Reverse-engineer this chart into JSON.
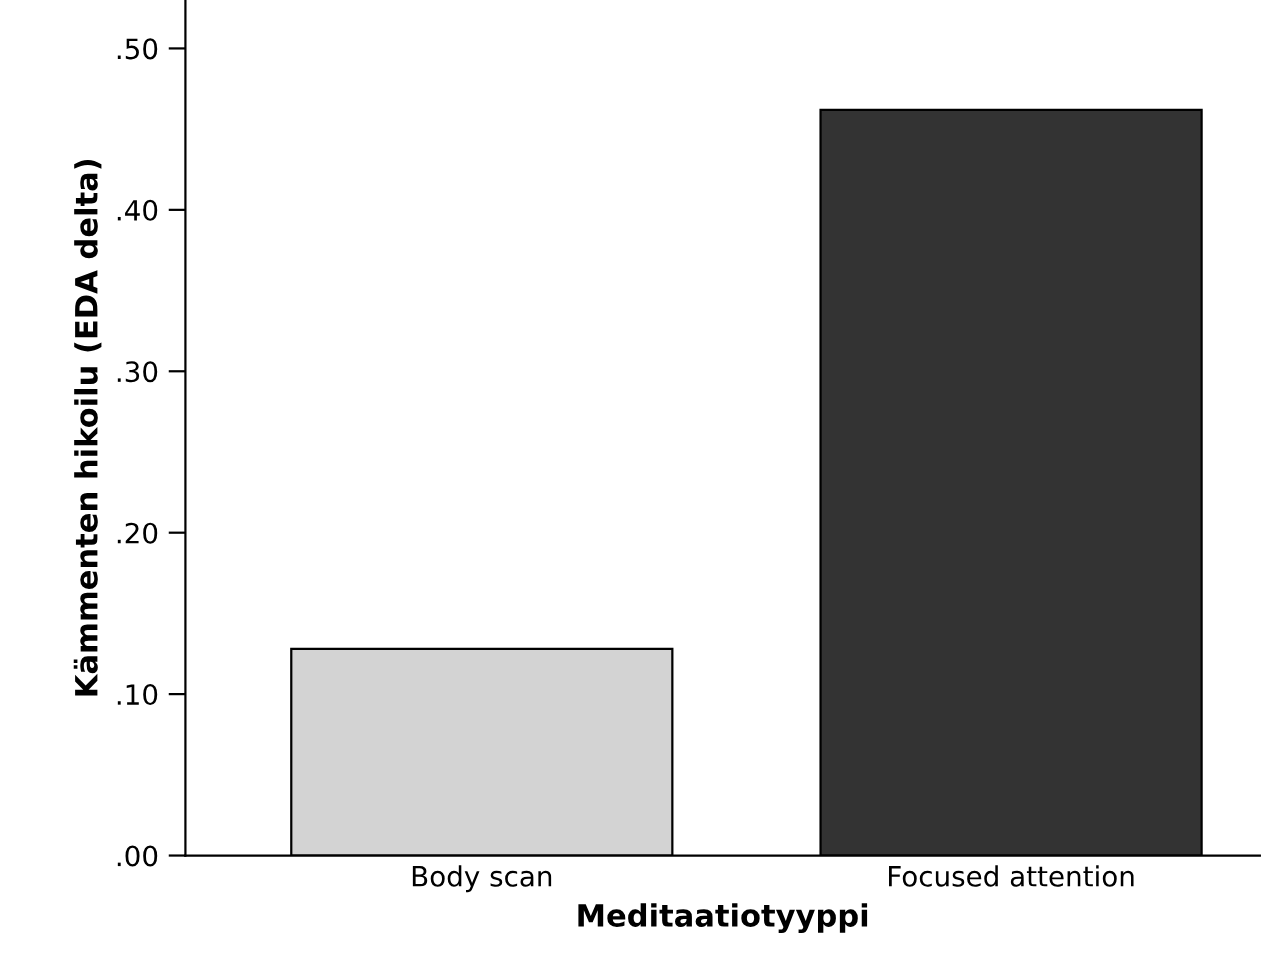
{
  "chart_data": {
    "type": "bar",
    "xlabel": "Meditaatiotyyppi",
    "ylabel": "Kämmenten hikoilu (EDA delta)",
    "categories": [
      "Body scan",
      "Focused attention"
    ],
    "values": [
      0.128,
      0.462
    ],
    "colors": [
      "#d3d3d3",
      "#333333"
    ],
    "ylim": [
      0,
      0.53
    ],
    "yticks": [
      {
        "value": 0,
        "label": ".00"
      },
      {
        "value": 0.1,
        "label": ".10"
      },
      {
        "value": 0.2,
        "label": ".20"
      },
      {
        "value": 0.3,
        "label": ".30"
      },
      {
        "value": 0.4,
        "label": ".40"
      },
      {
        "value": 0.5,
        "label": ".50"
      }
    ],
    "grid": false,
    "legend": false
  }
}
